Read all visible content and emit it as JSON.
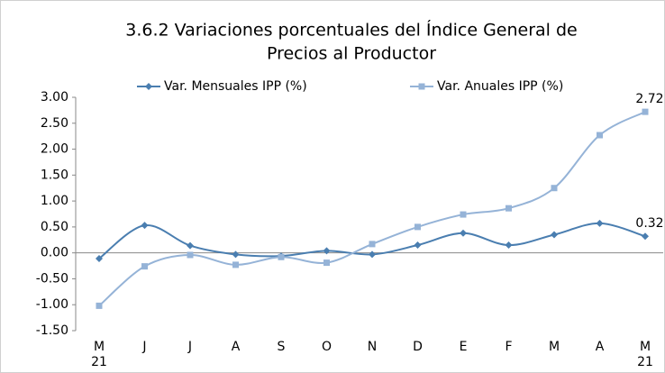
{
  "chart_data": {
    "type": "line",
    "title": [
      "3.6.2 Variaciones porcentuales del Índice General de",
      "Precios al Productor"
    ],
    "categories": [
      "M\n21",
      "J",
      "J",
      "A",
      "S",
      "O",
      "N",
      "D",
      "E",
      "F",
      "M",
      "A",
      "M\n21"
    ],
    "series": [
      {
        "name": "Var. Mensuales IPP (%)",
        "color": "#4a7eb0",
        "marker": "diamond",
        "values": [
          -0.11,
          0.53,
          0.14,
          -0.03,
          -0.06,
          0.04,
          -0.03,
          0.15,
          0.38,
          0.15,
          0.35,
          0.57,
          0.32
        ],
        "value_labels": [
          null,
          null,
          null,
          null,
          null,
          null,
          null,
          null,
          null,
          null,
          null,
          null,
          "0.32"
        ]
      },
      {
        "name": "Var. Anuales IPP (%)",
        "color": "#95b3d7",
        "marker": "square",
        "values": [
          -1.02,
          -0.26,
          -0.04,
          -0.23,
          -0.08,
          -0.19,
          0.17,
          0.5,
          0.74,
          0.86,
          1.25,
          2.27,
          2.72
        ],
        "value_labels": [
          null,
          null,
          null,
          null,
          null,
          null,
          null,
          null,
          null,
          null,
          null,
          null,
          "2.72"
        ]
      }
    ],
    "ylim": [
      -1.5,
      3.0
    ],
    "yticks": [
      {
        "value": 3.0,
        "label": "3.00"
      },
      {
        "value": 2.5,
        "label": "2.50"
      },
      {
        "value": 2.0,
        "label": "2.00"
      },
      {
        "value": 1.5,
        "label": "1.50"
      },
      {
        "value": 1.0,
        "label": "1.00"
      },
      {
        "value": 0.5,
        "label": "0.50"
      },
      {
        "value": 0.0,
        "label": "0.00"
      },
      {
        "value": -0.5,
        "label": "-0.50"
      },
      {
        "value": -1.0,
        "label": "-1.00"
      },
      {
        "value": -1.5,
        "label": "-1.50"
      }
    ],
    "legend": "top",
    "grid": false
  }
}
